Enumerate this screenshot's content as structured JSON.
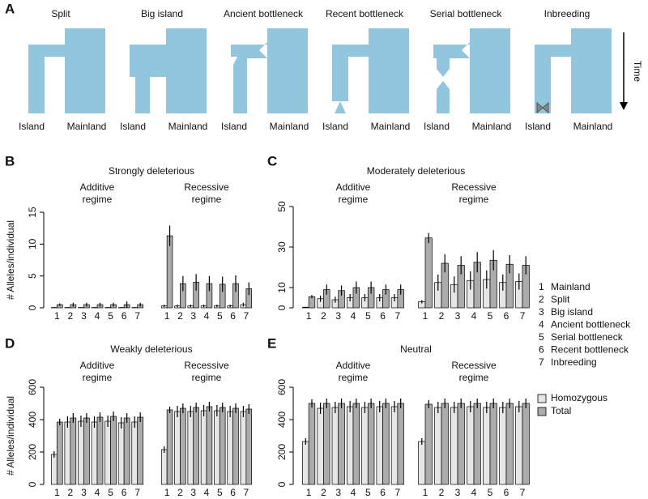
{
  "panel_a": {
    "label": "A",
    "time_label": "Time",
    "scenarios": [
      {
        "title": "Split",
        "island": "Island",
        "mainland": "Mainland"
      },
      {
        "title": "Big island",
        "island": "Island",
        "mainland": "Mainland"
      },
      {
        "title": "Ancient bottleneck",
        "island": "Island",
        "mainland": "Mainland"
      },
      {
        "title": "Recent bottleneck",
        "island": "Island",
        "mainland": "Mainland"
      },
      {
        "title": "Serial bottleneck",
        "island": "Island",
        "mainland": "Mainland"
      },
      {
        "title": "Inbreeding",
        "island": "Island",
        "mainland": "Mainland"
      }
    ]
  },
  "scenario_key": [
    {
      "number": "1",
      "name": "Mainland"
    },
    {
      "number": "2",
      "name": "Split"
    },
    {
      "number": "3",
      "name": "Big island"
    },
    {
      "number": "4",
      "name": "Ancient bottleneck"
    },
    {
      "number": "5",
      "name": "Serial bottleneck"
    },
    {
      "number": "6",
      "name": "Recent bottleneck"
    },
    {
      "number": "7",
      "name": "Inbreeding"
    }
  ],
  "legend": [
    {
      "name": "Homozygous",
      "color": "#e6e6e6"
    },
    {
      "name": "Total",
      "color": "#ababab"
    }
  ],
  "chart_data": [
    {
      "type": "bar",
      "panel": "B",
      "title": "Strongly deleterious",
      "ylabel": "# Alleles/individual",
      "ylim": [
        0,
        15
      ],
      "yticks": [
        0,
        5,
        10,
        15
      ],
      "categories": [
        "1",
        "2",
        "3",
        "4",
        "5",
        "6",
        "7"
      ],
      "groups": [
        {
          "title_lines": [
            "Additive",
            "regime"
          ],
          "series": [
            {
              "values": [
                0.05,
                0.05,
                0.05,
                0.05,
                0.05,
                0.05,
                0.05
              ],
              "errors": [
                0.05,
                0.05,
                0.05,
                0.05,
                0.05,
                0.05,
                0.05
              ]
            },
            {
              "values": [
                0.5,
                0.5,
                0.5,
                0.5,
                0.5,
                0.5,
                0.5
              ],
              "errors": [
                0.2,
                0.3,
                0.3,
                0.3,
                0.3,
                0.5,
                0.3
              ]
            }
          ]
        },
        {
          "title_lines": [
            "Recessive",
            "regime"
          ],
          "series": [
            {
              "values": [
                0.3,
                0.3,
                0.3,
                0.3,
                0.3,
                0.3,
                0.5
              ],
              "errors": [
                0.2,
                0.2,
                0.2,
                0.2,
                0.2,
                0.2,
                0.3
              ]
            },
            {
              "values": [
                11.3,
                3.8,
                4.0,
                3.8,
                3.7,
                3.8,
                3.0
              ],
              "errors": [
                1.6,
                1.2,
                1.3,
                1.2,
                1.2,
                1.3,
                1.0
              ]
            }
          ]
        }
      ]
    },
    {
      "type": "bar",
      "panel": "C",
      "title": "Moderately deleterious",
      "ylim": [
        0,
        50
      ],
      "yticks": [
        0,
        10,
        30,
        50
      ],
      "categories": [
        "1",
        "2",
        "3",
        "4",
        "5",
        "6",
        "7"
      ],
      "groups": [
        {
          "title_lines": [
            "Additive",
            "regime"
          ],
          "series": [
            {
              "values": [
                0.3,
                4.5,
                4,
                5,
                5,
                5,
                5
              ],
              "errors": [
                0.2,
                1.5,
                1.5,
                1.8,
                1.8,
                1.8,
                1.8
              ]
            },
            {
              "values": [
                5.5,
                9,
                8.5,
                10,
                10,
                9,
                9
              ],
              "errors": [
                0.8,
                2.5,
                2.5,
                3,
                3,
                2.5,
                2.5
              ]
            }
          ]
        },
        {
          "title_lines": [
            "Recessive",
            "regime"
          ],
          "series": [
            {
              "values": [
                3,
                12.5,
                11.5,
                13.5,
                14,
                12.5,
                13
              ],
              "errors": [
                0.8,
                4,
                4,
                4.5,
                4.5,
                4,
                4
              ]
            },
            {
              "values": [
                34.5,
                22,
                21,
                22.5,
                23.5,
                21.5,
                21
              ],
              "errors": [
                2.5,
                4.5,
                4.5,
                5,
                5,
                4.5,
                4.5
              ]
            }
          ]
        }
      ]
    },
    {
      "type": "bar",
      "panel": "D",
      "title": "Weakly deleterious",
      "ylabel": "# Alleles/individual",
      "ylim": [
        0,
        600
      ],
      "yticks": [
        0,
        200,
        400,
        600
      ],
      "categories": [
        "1",
        "2",
        "3",
        "4",
        "5",
        "6",
        "7"
      ],
      "groups": [
        {
          "title_lines": [
            "Additive",
            "regime"
          ],
          "series": [
            {
              "values": [
                185,
                385,
                390,
                385,
                390,
                380,
                385
              ],
              "errors": [
                20,
                35,
                35,
                35,
                35,
                35,
                35
              ]
            },
            {
              "values": [
                385,
                410,
                410,
                415,
                420,
                410,
                415
              ],
              "errors": [
                20,
                30,
                30,
                30,
                30,
                30,
                30
              ]
            }
          ]
        },
        {
          "title_lines": [
            "Recessive",
            "regime"
          ],
          "series": [
            {
              "values": [
                215,
                450,
                450,
                455,
                455,
                450,
                450
              ],
              "errors": [
                20,
                35,
                35,
                35,
                35,
                35,
                35
              ]
            },
            {
              "values": [
                460,
                470,
                475,
                480,
                475,
                470,
                465
              ],
              "errors": [
                20,
                30,
                30,
                30,
                30,
                30,
                30
              ]
            }
          ]
        }
      ]
    },
    {
      "type": "bar",
      "panel": "E",
      "title": "Neutral",
      "ylim": [
        0,
        600
      ],
      "yticks": [
        0,
        200,
        400,
        600
      ],
      "categories": [
        "1",
        "2",
        "3",
        "4",
        "5",
        "6",
        "7"
      ],
      "groups": [
        {
          "title_lines": [
            "Additive",
            "regime"
          ],
          "series": [
            {
              "values": [
                265,
                470,
                475,
                480,
                475,
                480,
                480
              ],
              "errors": [
                20,
                35,
                35,
                35,
                35,
                35,
                35
              ]
            },
            {
              "values": [
                500,
                500,
                500,
                500,
                500,
                500,
                500
              ],
              "errors": [
                25,
                30,
                30,
                30,
                30,
                30,
                30
              ]
            }
          ]
        },
        {
          "title_lines": [
            "Recessive",
            "regime"
          ],
          "series": [
            {
              "values": [
                265,
                475,
                475,
                480,
                475,
                475,
                480
              ],
              "errors": [
                20,
                35,
                35,
                35,
                35,
                35,
                35
              ]
            },
            {
              "values": [
                495,
                500,
                500,
                500,
                500,
                500,
                500
              ],
              "errors": [
                25,
                30,
                30,
                30,
                30,
                30,
                30
              ]
            }
          ]
        }
      ]
    }
  ]
}
